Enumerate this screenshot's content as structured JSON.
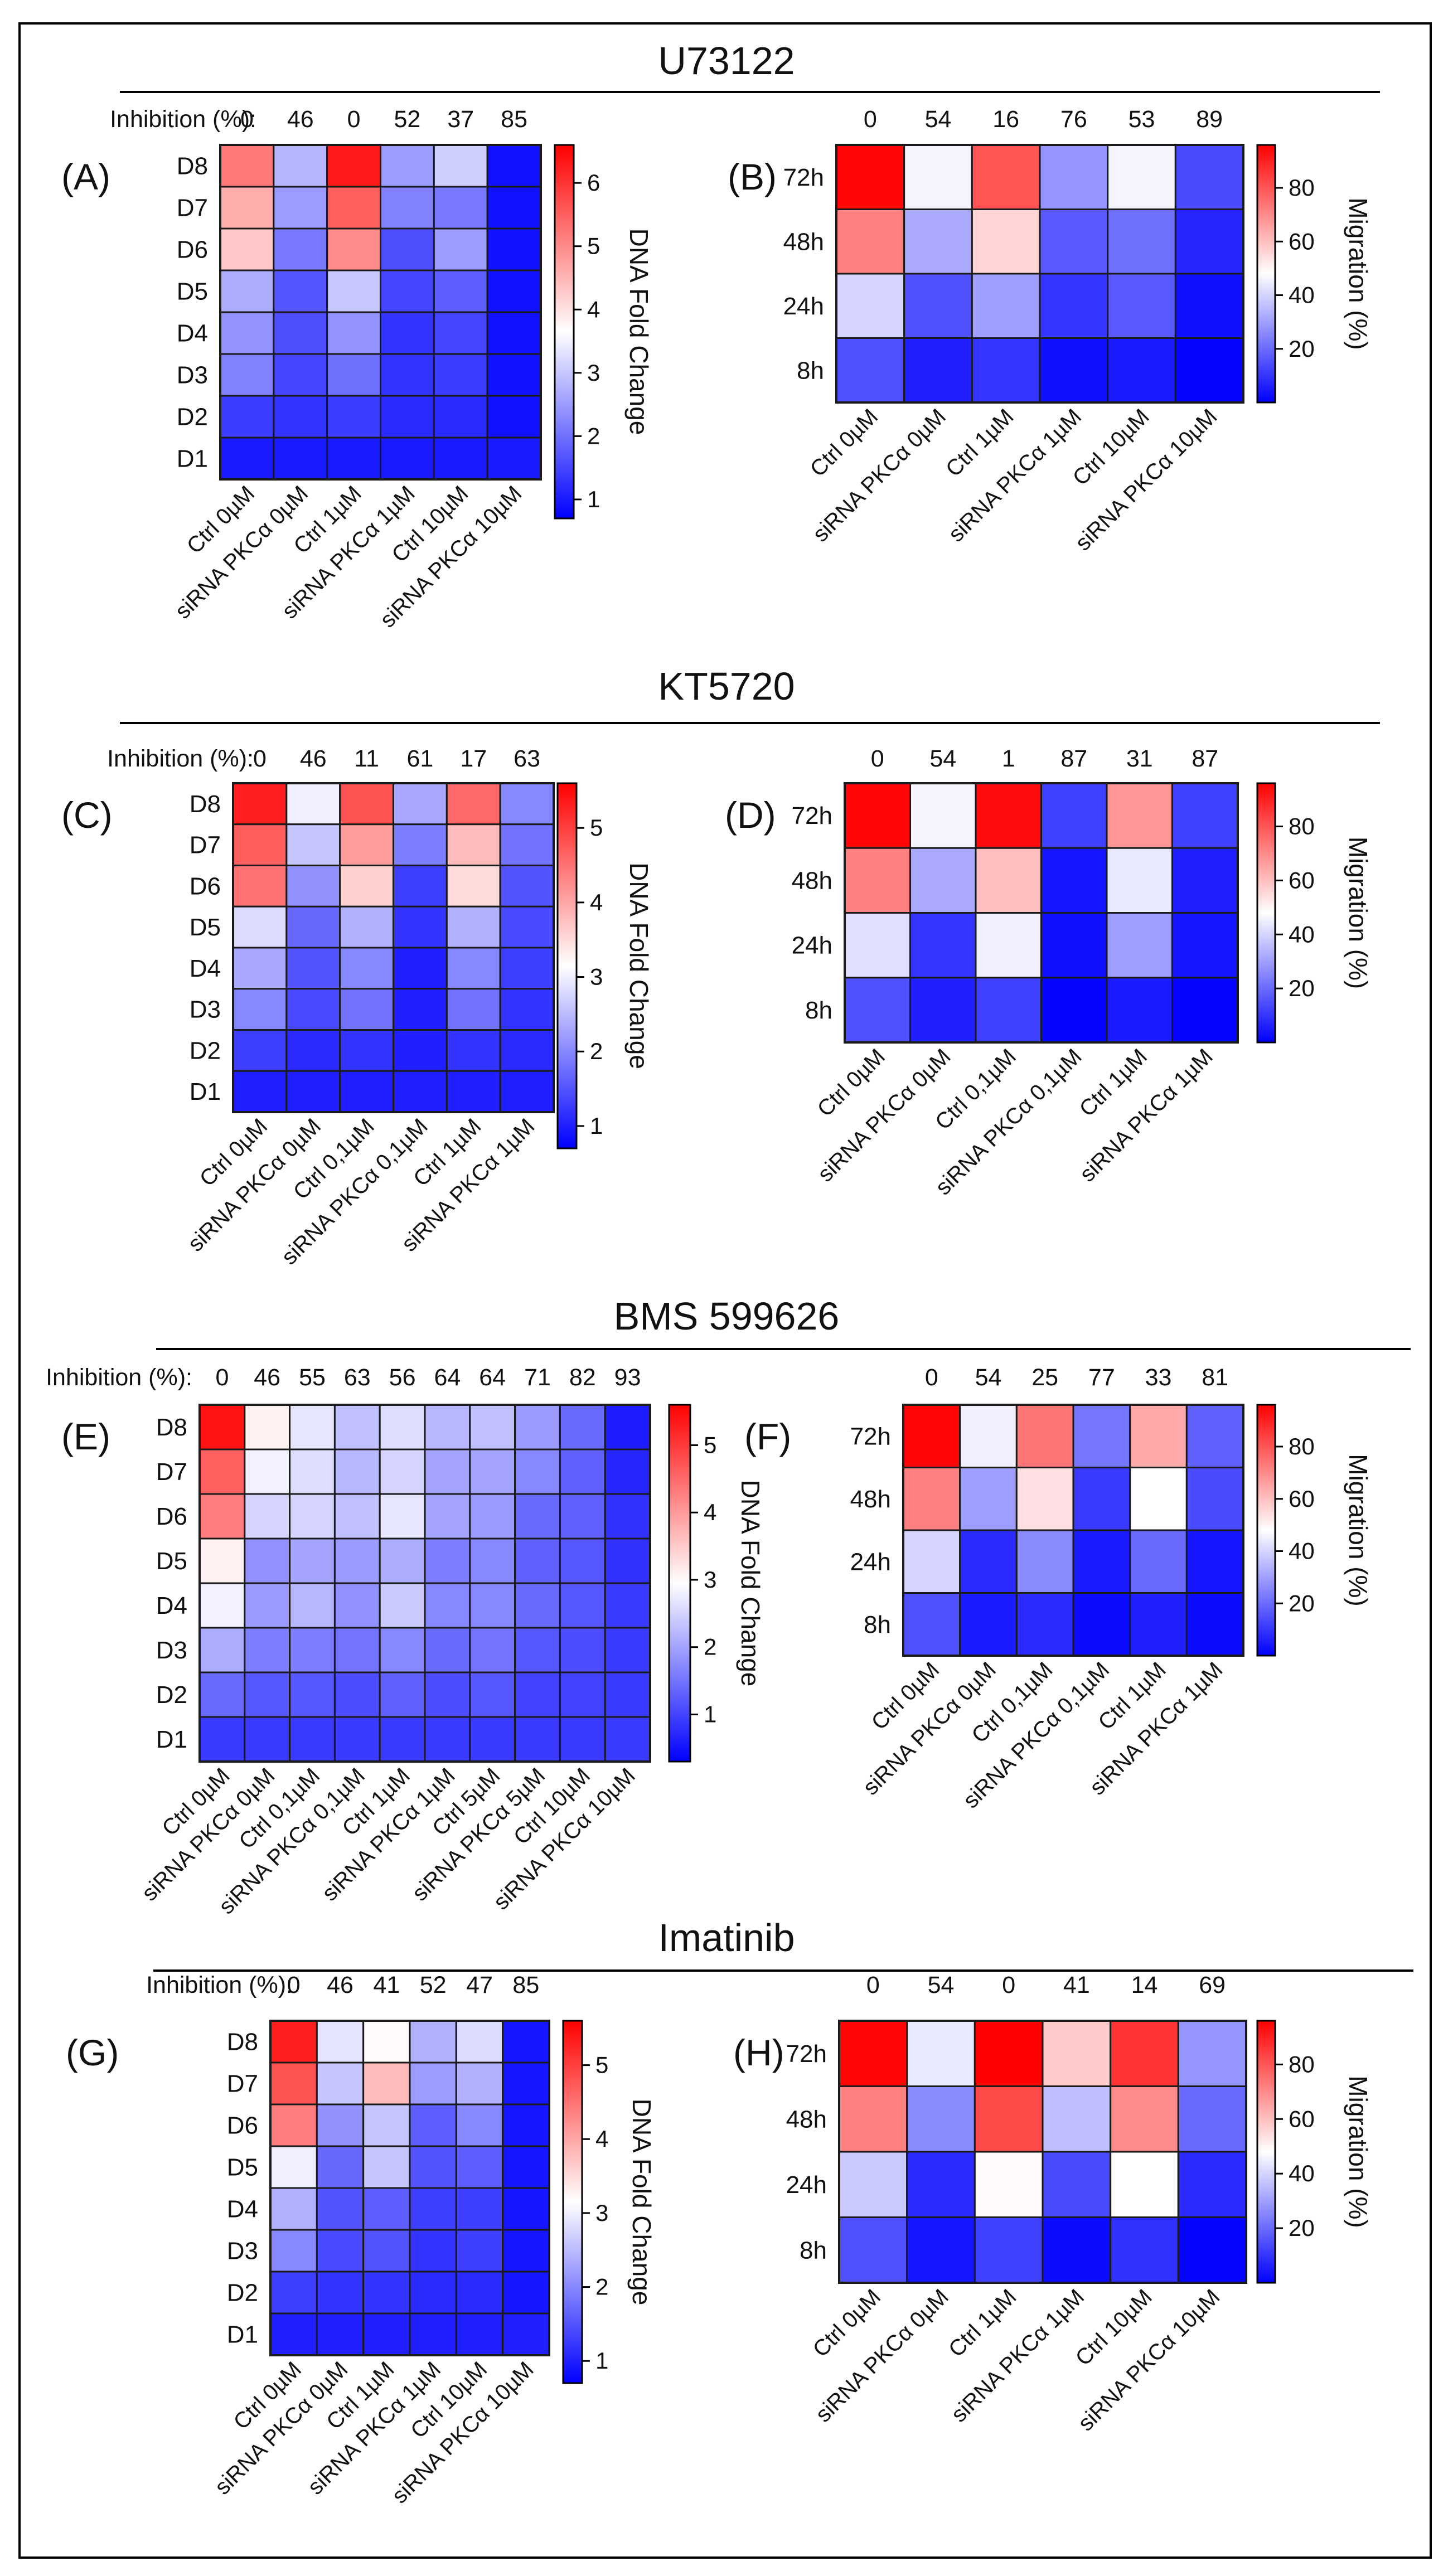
{
  "inhibition_label": "Inhibition (%):",
  "colors": {
    "low": "#0000ff",
    "mid": "#ffffff",
    "high": "#ff0000",
    "grid": "#1a1a1a"
  },
  "sections": [
    {
      "title": "U73122"
    },
    {
      "title": "KT5720"
    },
    {
      "title": "BMS 599626"
    },
    {
      "title": "Imatinib"
    }
  ],
  "chart_data": [
    {
      "panel": "(A)",
      "type": "heatmap",
      "section": "U73122",
      "row_labels": [
        "D8",
        "D7",
        "D6",
        "D5",
        "D4",
        "D3",
        "D2",
        "D1"
      ],
      "columns": [
        "Ctrl 0µM",
        "siRNA PKCα 0µM",
        "Ctrl 1µM",
        "siRNA PKCα 1µM",
        "Ctrl 10µM",
        "siRNA PKCα 10µM"
      ],
      "inhibition": [
        "0",
        "46",
        "0",
        "52",
        "37",
        "85"
      ],
      "values": [
        [
          5.2,
          2.8,
          6.3,
          2.5,
          3.1,
          0.9
        ],
        [
          4.6,
          2.5,
          5.5,
          2.2,
          2.1,
          0.9
        ],
        [
          4.3,
          2.1,
          5.0,
          1.6,
          2.5,
          0.9
        ],
        [
          2.7,
          1.7,
          3.0,
          1.5,
          1.8,
          0.9
        ],
        [
          2.4,
          1.6,
          2.4,
          1.3,
          1.5,
          0.9
        ],
        [
          2.2,
          1.5,
          2.0,
          1.3,
          1.4,
          0.9
        ],
        [
          1.4,
          1.3,
          1.4,
          1.2,
          1.2,
          0.9
        ],
        [
          1.0,
          1.0,
          1.0,
          1.0,
          1.0,
          1.0
        ]
      ],
      "colorbar": {
        "min": 0.7,
        "max": 6.6,
        "ticks": [
          "6",
          "5",
          "4",
          "3",
          "2",
          "1"
        ],
        "tick_values": [
          6,
          5,
          4,
          3,
          2,
          1
        ],
        "label": "DNA Fold Change"
      }
    },
    {
      "panel": "(B)",
      "type": "heatmap",
      "section": "U73122",
      "row_labels": [
        "72h",
        "48h",
        "24h",
        "8h"
      ],
      "columns": [
        "Ctrl 0µM",
        "siRNA PKCα 0µM",
        "Ctrl 1µM",
        "siRNA PKCα 1µM",
        "Ctrl 10µM",
        "siRNA PKCα 10µM"
      ],
      "inhibition": [
        "0",
        "54",
        "16",
        "76",
        "53",
        "89"
      ],
      "values": [
        [
          95,
          46,
          80,
          28,
          46,
          14
        ],
        [
          72,
          32,
          56,
          17,
          21,
          7
        ],
        [
          40,
          15,
          30,
          10,
          17,
          3
        ],
        [
          15,
          6,
          10,
          3,
          5,
          1
        ]
      ],
      "colorbar": {
        "min": 0,
        "max": 96,
        "ticks": [
          "80",
          "60",
          "40",
          "20"
        ],
        "tick_values": [
          80,
          60,
          40,
          20
        ],
        "label": "Migration (%)"
      }
    },
    {
      "panel": "(C)",
      "type": "heatmap",
      "section": "KT5720",
      "row_labels": [
        "D8",
        "D7",
        "D6",
        "D5",
        "D4",
        "D3",
        "D2",
        "D1"
      ],
      "columns": [
        "Ctrl 0µM",
        "siRNA PKCα 0µM",
        "Ctrl 0,1µM",
        "siRNA PKCα 0,1µM",
        "Ctrl 1µM",
        "siRNA PKCα 1µM"
      ],
      "inhibition": [
        "0",
        "46",
        "11",
        "61",
        "17",
        "63"
      ],
      "values": [
        [
          5.3,
          3.0,
          4.8,
          2.3,
          4.6,
          2.0
        ],
        [
          4.7,
          2.6,
          4.1,
          1.9,
          3.8,
          1.8
        ],
        [
          4.5,
          2.1,
          3.6,
          1.3,
          3.5,
          1.5
        ],
        [
          2.8,
          1.7,
          2.4,
          1.2,
          2.4,
          1.4
        ],
        [
          2.3,
          1.5,
          2.0,
          1.0,
          2.0,
          1.3
        ],
        [
          2.0,
          1.4,
          1.8,
          1.0,
          1.8,
          1.2
        ],
        [
          1.3,
          1.1,
          1.2,
          1.0,
          1.2,
          1.1
        ],
        [
          1.0,
          1.0,
          1.0,
          1.0,
          1.0,
          1.0
        ]
      ],
      "colorbar": {
        "min": 0.7,
        "max": 5.6,
        "ticks": [
          "5",
          "4",
          "3",
          "2",
          "1"
        ],
        "tick_values": [
          5,
          4,
          3,
          2,
          1
        ],
        "label": "DNA Fold Change"
      }
    },
    {
      "panel": "(D)",
      "type": "heatmap",
      "section": "KT5720",
      "row_labels": [
        "72h",
        "48h",
        "24h",
        "8h"
      ],
      "columns": [
        "Ctrl 0µM",
        "siRNA PKCα 0µM",
        "Ctrl 0,1µM",
        "siRNA PKCα 0,1µM",
        "Ctrl 1µM",
        "siRNA PKCα 1µM"
      ],
      "inhibition": [
        "0",
        "54",
        "1",
        "87",
        "31",
        "87"
      ],
      "values": [
        [
          95,
          46,
          94,
          12,
          68,
          12
        ],
        [
          72,
          32,
          60,
          4,
          44,
          6
        ],
        [
          42,
          10,
          45,
          3,
          30,
          4
        ],
        [
          15,
          6,
          12,
          1,
          5,
          1
        ]
      ],
      "colorbar": {
        "min": 0,
        "max": 96,
        "ticks": [
          "80",
          "60",
          "40",
          "20"
        ],
        "tick_values": [
          80,
          60,
          40,
          20
        ],
        "label": "Migration (%)"
      }
    },
    {
      "panel": "(E)",
      "type": "heatmap",
      "section": "BMS 599626",
      "row_labels": [
        "D8",
        "D7",
        "D6",
        "D5",
        "D4",
        "D3",
        "D2",
        "D1"
      ],
      "columns": [
        "Ctrl 0µM",
        "siRNA PKCα 0µM",
        "Ctrl 0,1µM",
        "siRNA PKCα 0,1µM",
        "Ctrl 1µM",
        "siRNA PKCα 1µM",
        "Ctrl 5µM",
        "siRNA PKCα 5µM",
        "Ctrl 10µM",
        "siRNA PKCα 10µM"
      ],
      "inhibition": [
        "0",
        "46",
        "55",
        "63",
        "56",
        "64",
        "64",
        "71",
        "82",
        "93"
      ],
      "values": [
        [
          5.4,
          3.1,
          2.7,
          2.3,
          2.6,
          2.2,
          2.3,
          1.9,
          1.4,
          0.6
        ],
        [
          4.6,
          2.8,
          2.6,
          2.2,
          2.5,
          2.0,
          2.0,
          1.7,
          1.3,
          0.7
        ],
        [
          4.3,
          2.5,
          2.5,
          2.3,
          2.7,
          2.0,
          1.9,
          1.4,
          1.3,
          0.8
        ],
        [
          3.1,
          1.8,
          2.0,
          1.9,
          2.1,
          1.6,
          1.7,
          1.3,
          1.2,
          0.8
        ],
        [
          2.8,
          1.9,
          2.2,
          1.8,
          2.4,
          1.7,
          1.7,
          1.4,
          1.2,
          0.9
        ],
        [
          2.1,
          1.6,
          1.6,
          1.5,
          1.7,
          1.4,
          1.5,
          1.2,
          1.1,
          0.9
        ],
        [
          1.4,
          1.2,
          1.2,
          1.1,
          1.3,
          1.1,
          1.2,
          1.0,
          1.0,
          0.9
        ],
        [
          0.9,
          0.9,
          0.9,
          0.9,
          0.9,
          0.9,
          0.9,
          0.9,
          0.9,
          0.9
        ]
      ],
      "colorbar": {
        "min": 0.3,
        "max": 5.6,
        "ticks": [
          "5",
          "4",
          "3",
          "2",
          "1"
        ],
        "tick_values": [
          5,
          4,
          3,
          2,
          1
        ],
        "label": "DNA Fold Change"
      }
    },
    {
      "panel": "(F)",
      "type": "heatmap",
      "section": "BMS 599626",
      "row_labels": [
        "72h",
        "48h",
        "24h",
        "8h"
      ],
      "columns": [
        "Ctrl 0µM",
        "siRNA PKCα 0µM",
        "Ctrl 0,1µM",
        "siRNA PKCα 0,1µM",
        "Ctrl 1µM",
        "siRNA PKCα 1µM"
      ],
      "inhibition": [
        "0",
        "54",
        "25",
        "77",
        "33",
        "81"
      ],
      "values": [
        [
          95,
          45,
          74,
          22,
          64,
          18
        ],
        [
          72,
          30,
          54,
          11,
          48,
          14
        ],
        [
          40,
          8,
          26,
          5,
          20,
          4
        ],
        [
          15,
          5,
          8,
          2,
          6,
          2
        ]
      ],
      "colorbar": {
        "min": 0,
        "max": 96,
        "ticks": [
          "80",
          "60",
          "40",
          "20"
        ],
        "tick_values": [
          80,
          60,
          40,
          20
        ],
        "label": "Migration (%)"
      }
    },
    {
      "panel": "(G)",
      "type": "heatmap",
      "section": "Imatinib",
      "row_labels": [
        "D8",
        "D7",
        "D6",
        "D5",
        "D4",
        "D3",
        "D2",
        "D1"
      ],
      "columns": [
        "Ctrl 0µM",
        "siRNA PKCα 0µM",
        "Ctrl 1µM",
        "siRNA PKCα 1µM",
        "Ctrl 10µM",
        "siRNA PKCα 10µM"
      ],
      "inhibition": [
        "0",
        "46",
        "41",
        "52",
        "47",
        "85"
      ],
      "values": [
        [
          5.3,
          2.9,
          3.2,
          2.4,
          2.8,
          0.9
        ],
        [
          4.8,
          2.6,
          3.8,
          2.2,
          2.4,
          0.9
        ],
        [
          4.4,
          2.1,
          2.6,
          1.6,
          2.0,
          0.9
        ],
        [
          3.0,
          1.7,
          2.6,
          1.5,
          1.6,
          0.9
        ],
        [
          2.4,
          1.5,
          1.6,
          1.3,
          1.3,
          0.9
        ],
        [
          2.0,
          1.4,
          1.5,
          1.2,
          1.3,
          0.9
        ],
        [
          1.3,
          1.2,
          1.2,
          1.1,
          1.1,
          0.9
        ],
        [
          1.0,
          1.0,
          1.0,
          1.0,
          1.0,
          1.0
        ]
      ],
      "colorbar": {
        "min": 0.7,
        "max": 5.6,
        "ticks": [
          "5",
          "4",
          "3",
          "2",
          "1"
        ],
        "tick_values": [
          5,
          4,
          3,
          2,
          1
        ],
        "label": "DNA Fold Change"
      }
    },
    {
      "panel": "(H)",
      "type": "heatmap",
      "section": "Imatinib",
      "row_labels": [
        "72h",
        "48h",
        "24h",
        "8h"
      ],
      "columns": [
        "Ctrl 0µM",
        "siRNA PKCα 0µM",
        "Ctrl 1µM",
        "siRNA PKCα 1µM",
        "Ctrl 10µM",
        "siRNA PKCα 10µM"
      ],
      "inhibition": [
        "0",
        "54",
        "0",
        "41",
        "14",
        "69"
      ],
      "values": [
        [
          95,
          44,
          96,
          58,
          86,
          28
        ],
        [
          72,
          26,
          82,
          36,
          70,
          20
        ],
        [
          38,
          8,
          49,
          14,
          48,
          8
        ],
        [
          15,
          4,
          12,
          2,
          9,
          1
        ]
      ],
      "colorbar": {
        "min": 0,
        "max": 96,
        "ticks": [
          "80",
          "60",
          "40",
          "20"
        ],
        "tick_values": [
          80,
          60,
          40,
          20
        ],
        "label": "Migration (%)"
      }
    }
  ]
}
